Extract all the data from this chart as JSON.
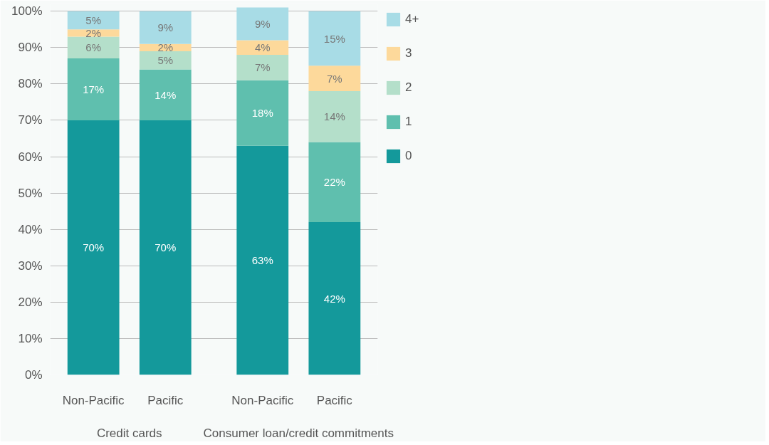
{
  "chart_data": {
    "type": "bar",
    "stacked": true,
    "categories": [
      "Non-Pacific",
      "Pacific",
      "Non-Pacific",
      "Pacific"
    ],
    "series": [
      {
        "name": "0",
        "color": "#14999b",
        "values": [
          70,
          70,
          63,
          42
        ],
        "value_labels": [
          "70%",
          "70%",
          "63%",
          "42%"
        ]
      },
      {
        "name": "1",
        "color": "#5fbfae",
        "values": [
          17,
          14,
          18,
          22
        ],
        "value_labels": [
          "17%",
          "14%",
          "18%",
          "22%"
        ]
      },
      {
        "name": "2",
        "color": "#b4dfca",
        "values": [
          6,
          5,
          7,
          14
        ],
        "value_labels": [
          "6%",
          "5%",
          "7%",
          "14%"
        ]
      },
      {
        "name": "3",
        "color": "#fdd99b",
        "values": [
          2,
          2,
          4,
          7
        ],
        "value_labels": [
          "2%",
          "2%",
          "4%",
          "7%"
        ]
      },
      {
        "name": "4+",
        "color": "#a8dce6",
        "values": [
          5,
          9,
          9,
          15
        ],
        "value_labels": [
          "5%",
          "9%",
          "9%",
          "15%"
        ]
      }
    ],
    "ylim": [
      0,
      102
    ],
    "yticks": [
      {
        "value": 0,
        "label": "0%"
      },
      {
        "value": 10,
        "label": "10%"
      },
      {
        "value": 20,
        "label": "20%"
      },
      {
        "value": 30,
        "label": "30%"
      },
      {
        "value": 40,
        "label": "40%"
      },
      {
        "value": 50,
        "label": "50%"
      },
      {
        "value": 60,
        "label": "60%"
      },
      {
        "value": 70,
        "label": "70%"
      },
      {
        "value": 80,
        "label": "80%"
      },
      {
        "value": 90,
        "label": "90%"
      },
      {
        "value": 100,
        "label": "100%"
      }
    ],
    "grid": "y",
    "legend": "top right",
    "annotations": [
      "Credit cards",
      "Consumer loan/credit commitments"
    ]
  }
}
